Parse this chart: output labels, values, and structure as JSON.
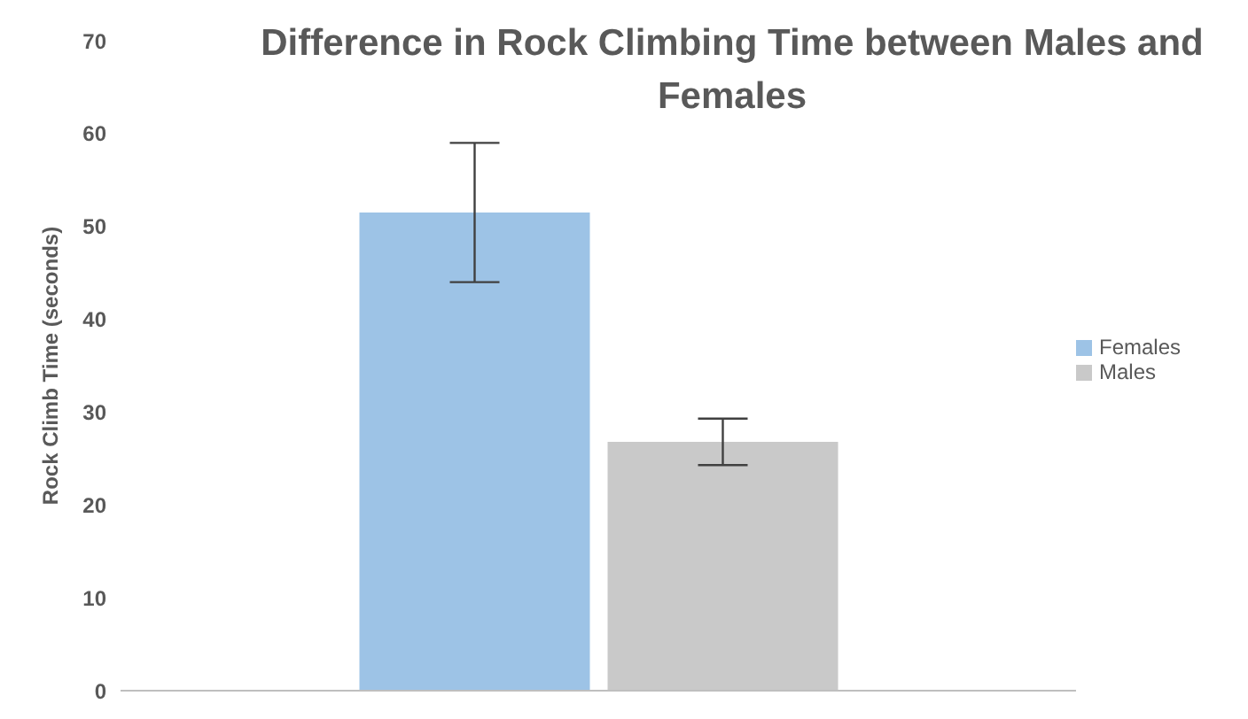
{
  "chart_data": {
    "type": "bar",
    "title": "Difference in Rock Climbing Time between Males and Females",
    "ylabel": "Rock Climb Time (seconds)",
    "categories": [
      null
    ],
    "series": [
      {
        "name": "Females",
        "color": "#9dc3e6",
        "values": [
          51.5
        ],
        "errors": [
          7.5
        ]
      },
      {
        "name": "Males",
        "color": "#c9c9c9",
        "values": [
          26.8
        ],
        "errors": [
          2.5
        ]
      }
    ],
    "ylim": [
      0,
      70
    ],
    "yticks": [
      0,
      10,
      20,
      30,
      40,
      50,
      60,
      70
    ],
    "legend": "right",
    "grid": false
  }
}
